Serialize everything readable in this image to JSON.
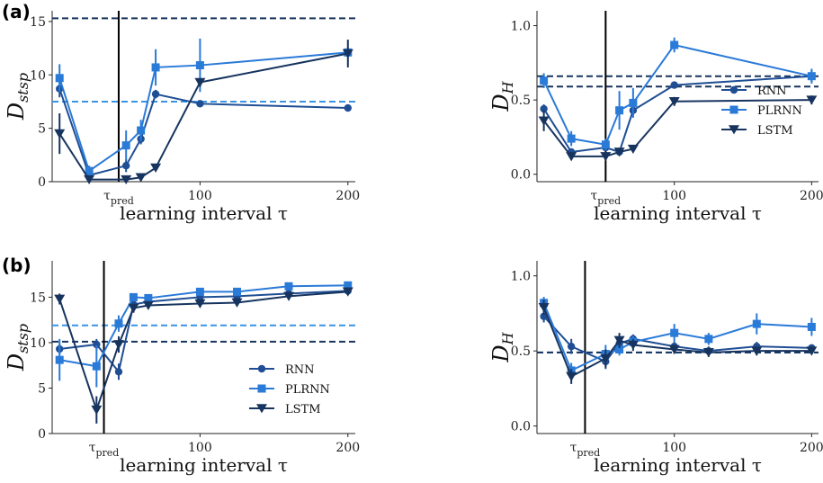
{
  "panel_labels": [
    "(a)",
    "(b)"
  ],
  "colors": {
    "RNN": "#1f4e94",
    "PLRNN": "#2a7ad8",
    "LSTM": "#17345f",
    "dash_dark": "#17345f",
    "dash_light": "#3a94e4",
    "vline": "#000000"
  },
  "chart_data": [
    {
      "type": "line",
      "panel": "(a)",
      "position": "left",
      "ylabel": "D_{stsp}",
      "ylabel_main": "D",
      "ylabel_sub": "stsp",
      "xlabel": "learning interval τ",
      "xlim": [
        0,
        205
      ],
      "ylim": [
        0,
        16
      ],
      "xticks": [
        {
          "value": 100,
          "label": "100"
        },
        {
          "value": 200,
          "label": "200"
        }
      ],
      "yticks": [
        {
          "value": 0,
          "label": "0"
        },
        {
          "value": 5,
          "label": "5"
        },
        {
          "value": 10,
          "label": "10"
        },
        {
          "value": 15,
          "label": "15"
        }
      ],
      "vline": {
        "x": 45,
        "label_main": "τ",
        "label_sub": "pred"
      },
      "hlines": [
        {
          "y": 15.3,
          "color": "dark"
        },
        {
          "y": 7.5,
          "color": "light"
        }
      ],
      "series": [
        {
          "name": "RNN",
          "marker": "circle",
          "x": [
            5,
            25,
            50,
            60,
            70,
            100,
            200
          ],
          "y": [
            8.7,
            0.6,
            1.5,
            4.0,
            8.2,
            7.3,
            6.9
          ],
          "err": [
            0.8,
            0.4,
            0.6,
            0.5,
            0.4,
            0.3,
            0.2
          ]
        },
        {
          "name": "PLRNN",
          "marker": "square",
          "x": [
            5,
            25,
            50,
            60,
            70,
            100,
            200
          ],
          "y": [
            9.7,
            1.0,
            3.4,
            4.8,
            10.7,
            10.9,
            12.1
          ],
          "err": [
            1.3,
            0.5,
            1.4,
            1.0,
            1.7,
            2.5,
            0.4
          ]
        },
        {
          "name": "LSTM",
          "marker": "triangle-down",
          "x": [
            5,
            25,
            50,
            60,
            70,
            100,
            200
          ],
          "y": [
            4.5,
            0.2,
            0.2,
            0.4,
            1.3,
            9.3,
            12.0
          ],
          "err": [
            1.9,
            0.2,
            0.2,
            0.2,
            0.3,
            0.4,
            1.3
          ]
        }
      ]
    },
    {
      "type": "line",
      "panel": "(a)",
      "position": "right",
      "ylabel": "D_H",
      "ylabel_main": "D",
      "ylabel_sub": "H",
      "xlabel": "learning interval τ",
      "xlim": [
        0,
        205
      ],
      "ylim": [
        -0.05,
        1.1
      ],
      "xticks": [
        {
          "value": 100,
          "label": "100"
        },
        {
          "value": 200,
          "label": "200"
        }
      ],
      "yticks": [
        {
          "value": 0,
          "label": "0.0"
        },
        {
          "value": 0.5,
          "label": "0.5"
        },
        {
          "value": 1.0,
          "label": "1.0"
        }
      ],
      "vline": {
        "x": 50,
        "label_main": "τ",
        "label_sub": "pred"
      },
      "hlines": [
        {
          "y": 0.66,
          "color": "dark"
        },
        {
          "y": 0.59,
          "color": "dark"
        }
      ],
      "legend": {
        "placement": "center-right",
        "entries": [
          "RNN",
          "PLRNN",
          "LSTM"
        ]
      },
      "series": [
        {
          "name": "RNN",
          "marker": "circle",
          "x": [
            5,
            25,
            50,
            60,
            70,
            100,
            200
          ],
          "y": [
            0.44,
            0.15,
            0.18,
            0.15,
            0.43,
            0.6,
            0.66
          ],
          "err": [
            0.03,
            0.02,
            0.02,
            0.02,
            0.04,
            0.02,
            0.04
          ]
        },
        {
          "name": "PLRNN",
          "marker": "square",
          "x": [
            5,
            25,
            50,
            60,
            70,
            100,
            200
          ],
          "y": [
            0.63,
            0.24,
            0.2,
            0.43,
            0.48,
            0.87,
            0.66
          ],
          "err": [
            0.05,
            0.05,
            0.04,
            0.13,
            0.1,
            0.05,
            0.05
          ]
        },
        {
          "name": "LSTM",
          "marker": "triangle-down",
          "x": [
            5,
            25,
            50,
            60,
            70,
            100,
            200
          ],
          "y": [
            0.36,
            0.12,
            0.12,
            0.15,
            0.17,
            0.49,
            0.5
          ],
          "err": [
            0.07,
            0.02,
            0.02,
            0.02,
            0.02,
            0.03,
            0.03
          ]
        }
      ]
    },
    {
      "type": "line",
      "panel": "(b)",
      "position": "left",
      "ylabel": "D_{stsp}",
      "ylabel_main": "D",
      "ylabel_sub": "stsp",
      "xlabel": "learning interval τ",
      "xlim": [
        0,
        205
      ],
      "ylim": [
        0,
        19
      ],
      "xticks": [
        {
          "value": 100,
          "label": "100"
        },
        {
          "value": 200,
          "label": "200"
        }
      ],
      "yticks": [
        {
          "value": 0,
          "label": "0"
        },
        {
          "value": 5,
          "label": "5"
        },
        {
          "value": 10,
          "label": "10"
        },
        {
          "value": 15,
          "label": "15"
        }
      ],
      "vline": {
        "x": 35,
        "label_main": "τ",
        "label_sub": "pred"
      },
      "hlines": [
        {
          "y": 11.9,
          "color": "light"
        },
        {
          "y": 10.1,
          "color": "dark"
        }
      ],
      "legend": {
        "placement": "lower-right",
        "entries": [
          "RNN",
          "PLRNN",
          "LSTM"
        ]
      },
      "series": [
        {
          "name": "RNN",
          "marker": "circle",
          "x": [
            5,
            30,
            45,
            55,
            65,
            100,
            125,
            160,
            200
          ],
          "y": [
            9.3,
            9.8,
            6.8,
            14.2,
            14.5,
            15.0,
            15.1,
            15.4,
            15.7
          ],
          "err": [
            0.6,
            0.6,
            0.9,
            0.5,
            0.4,
            0.4,
            0.4,
            0.4,
            0.3
          ]
        },
        {
          "name": "PLRNN",
          "marker": "square",
          "x": [
            5,
            30,
            45,
            55,
            65,
            100,
            125,
            160,
            200
          ],
          "y": [
            8.1,
            7.4,
            12.1,
            15.0,
            14.9,
            15.6,
            15.6,
            16.2,
            16.3
          ],
          "err": [
            2.3,
            2.3,
            0.9,
            0.4,
            0.4,
            0.4,
            0.4,
            0.3,
            0.3
          ]
        },
        {
          "name": "LSTM",
          "marker": "triangle-down",
          "x": [
            5,
            30,
            45,
            55,
            65,
            100,
            125,
            160,
            200
          ],
          "y": [
            14.8,
            2.6,
            9.8,
            13.8,
            14.1,
            14.3,
            14.4,
            15.1,
            15.6
          ],
          "err": [
            0.6,
            1.5,
            0.9,
            0.5,
            0.4,
            0.4,
            0.4,
            0.4,
            0.3
          ]
        }
      ]
    },
    {
      "type": "line",
      "panel": "(b)",
      "position": "right",
      "ylabel": "D_H",
      "ylabel_main": "D",
      "ylabel_sub": "H",
      "xlabel": "learning interval τ",
      "xlim": [
        0,
        205
      ],
      "ylim": [
        -0.05,
        1.1
      ],
      "xticks": [
        {
          "value": 100,
          "label": "100"
        },
        {
          "value": 200,
          "label": "200"
        }
      ],
      "yticks": [
        {
          "value": 0,
          "label": "0.0"
        },
        {
          "value": 0.5,
          "label": "0.5"
        },
        {
          "value": 1.0,
          "label": "1.0"
        }
      ],
      "vline": {
        "x": 35,
        "label_main": "τ",
        "label_sub": "pred"
      },
      "hlines": [
        {
          "y": 0.49,
          "color": "light"
        },
        {
          "y": 0.49,
          "color": "dark"
        }
      ],
      "series": [
        {
          "name": "RNN",
          "marker": "circle",
          "x": [
            5,
            25,
            50,
            60,
            70,
            100,
            125,
            160,
            200
          ],
          "y": [
            0.73,
            0.53,
            0.43,
            0.55,
            0.58,
            0.53,
            0.5,
            0.53,
            0.52
          ],
          "err": [
            0.04,
            0.05,
            0.05,
            0.03,
            0.03,
            0.03,
            0.03,
            0.03,
            0.02
          ]
        },
        {
          "name": "PLRNN",
          "marker": "square",
          "x": [
            5,
            25,
            50,
            60,
            70,
            100,
            125,
            160,
            200
          ],
          "y": [
            0.82,
            0.37,
            0.48,
            0.51,
            0.56,
            0.62,
            0.58,
            0.68,
            0.66
          ],
          "err": [
            0.04,
            0.05,
            0.06,
            0.04,
            0.04,
            0.06,
            0.04,
            0.07,
            0.06
          ]
        },
        {
          "name": "LSTM",
          "marker": "triangle-down",
          "x": [
            5,
            25,
            50,
            60,
            70,
            100,
            125,
            160,
            200
          ],
          "y": [
            0.79,
            0.33,
            0.45,
            0.57,
            0.54,
            0.51,
            0.49,
            0.5,
            0.5
          ],
          "err": [
            0.05,
            0.05,
            0.06,
            0.05,
            0.04,
            0.03,
            0.03,
            0.03,
            0.02
          ]
        }
      ]
    }
  ]
}
